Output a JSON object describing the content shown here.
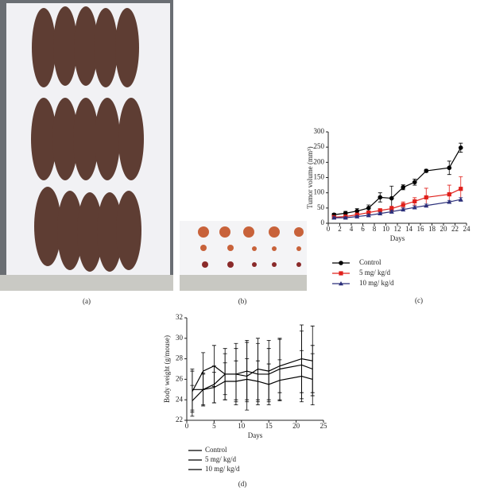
{
  "panels": {
    "a": "(a)",
    "b": "(b)",
    "c": "(c)",
    "d": "(d)"
  },
  "chart_data": [
    {
      "type": "line",
      "ylabel": "Tumor volume (mm³)",
      "xlabel": "Days",
      "x": [
        1,
        3,
        5,
        7,
        9,
        11,
        13,
        15,
        17,
        21,
        23
      ],
      "xlim": [
        0,
        24
      ],
      "xticks": [
        0,
        2,
        4,
        6,
        8,
        10,
        12,
        14,
        16,
        18,
        20,
        22,
        24
      ],
      "ylim": [
        0,
        300
      ],
      "yticks": [
        0,
        50,
        100,
        150,
        200,
        250,
        300
      ],
      "series": [
        {
          "name": "Control",
          "color": "#000000",
          "marker": "circle",
          "values": [
            28,
            33,
            40,
            50,
            85,
            82,
            118,
            135,
            172,
            182,
            248
          ],
          "errors": [
            5,
            6,
            8,
            10,
            15,
            40,
            8,
            10,
            5,
            22,
            15
          ]
        },
        {
          "name": "5 mg/ kg/d",
          "color": "#e0201b",
          "marker": "square",
          "values": [
            20,
            22,
            28,
            35,
            42,
            48,
            60,
            72,
            85,
            95,
            113
          ],
          "errors": [
            4,
            4,
            5,
            5,
            6,
            8,
            10,
            12,
            30,
            30,
            40
          ]
        },
        {
          "name": "10 mg/ kg/d",
          "color": "#2b2f7a",
          "marker": "triangle",
          "values": [
            18,
            18,
            22,
            26,
            32,
            38,
            45,
            52,
            58,
            70,
            78
          ],
          "errors": [
            3,
            3,
            3,
            4,
            4,
            5,
            5,
            5,
            5,
            5,
            6
          ]
        }
      ]
    },
    {
      "type": "line",
      "ylabel": "Body weight (g/mouse)",
      "xlabel": "Days",
      "x": [
        1,
        3,
        5,
        7,
        9,
        11,
        13,
        15,
        17,
        21,
        23
      ],
      "xlim": [
        0,
        25
      ],
      "xticks": [
        0,
        5,
        10,
        15,
        20,
        25
      ],
      "ylim": [
        22,
        32
      ],
      "yticks": [
        22,
        24,
        26,
        28,
        30,
        32
      ],
      "series": [
        {
          "name": "Control",
          "color": "#000000",
          "marker": "none",
          "values": [
            24.8,
            26.8,
            27.3,
            26.5,
            26.5,
            26.3,
            27.0,
            26.8,
            27.3,
            28.0,
            27.8
          ],
          "errors": [
            2,
            1.8,
            2,
            2.5,
            3,
            3.3,
            3,
            3,
            2.6,
            3.3,
            3.4
          ]
        },
        {
          "name": "5 mg/ kg/d",
          "color": "#000000",
          "marker": "none",
          "values": [
            23.9,
            25.0,
            25.5,
            26.5,
            26.5,
            26.8,
            26.5,
            26.5,
            27.0,
            27.4,
            27.0
          ],
          "errors": [
            1.5,
            1.6,
            1.8,
            2,
            2.5,
            3,
            3,
            2.5,
            3,
            3.3,
            2.3
          ]
        },
        {
          "name": "10 mg/ kg/d",
          "color": "#000000",
          "marker": "none",
          "values": [
            25.0,
            25.0,
            25.2,
            25.8,
            25.8,
            26.0,
            25.8,
            25.5,
            25.9,
            26.3,
            26.0
          ],
          "errors": [
            2,
            1.5,
            1.5,
            1.8,
            2,
            2,
            2,
            2,
            2,
            2.5,
            2.5
          ]
        }
      ]
    }
  ]
}
